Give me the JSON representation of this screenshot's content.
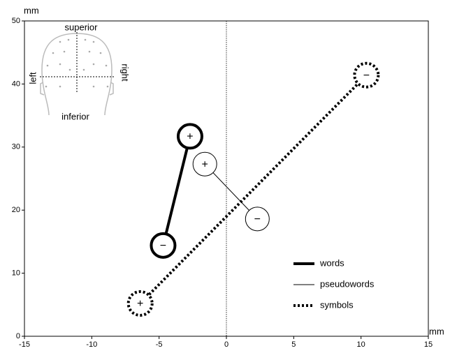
{
  "chart_data": {
    "type": "scatter",
    "x_label": "mm",
    "y_label": "mm",
    "xlim": [
      -15,
      15
    ],
    "ylim": [
      0,
      50
    ],
    "xticks": [
      -15,
      -10,
      -5,
      0,
      5,
      10,
      15
    ],
    "yticks": [
      0,
      10,
      20,
      30,
      40,
      50
    ],
    "reference_x": 0,
    "legend": "lower right",
    "inset_labels": {
      "top": "superior",
      "bottom": "inferior",
      "left": "left",
      "right": "right"
    },
    "series": [
      {
        "name": "words",
        "color": "#000000",
        "line_width": 4,
        "dashed": false,
        "x": [
          -2.7,
          -4.7
        ],
        "y": [
          31.7,
          14.4
        ],
        "labels": [
          "+",
          "−"
        ]
      },
      {
        "name": "pseudowords",
        "color": "#000000",
        "line_width": 1,
        "dashed": false,
        "x": [
          -1.6,
          2.3
        ],
        "y": [
          27.3,
          18.6
        ],
        "labels": [
          "+",
          "−"
        ]
      },
      {
        "name": "symbols",
        "color": "#000000",
        "line_width": 4,
        "dashed": true,
        "x": [
          -6.4,
          10.4
        ],
        "y": [
          5.2,
          41.4
        ],
        "labels": [
          "+",
          "−"
        ]
      }
    ]
  }
}
